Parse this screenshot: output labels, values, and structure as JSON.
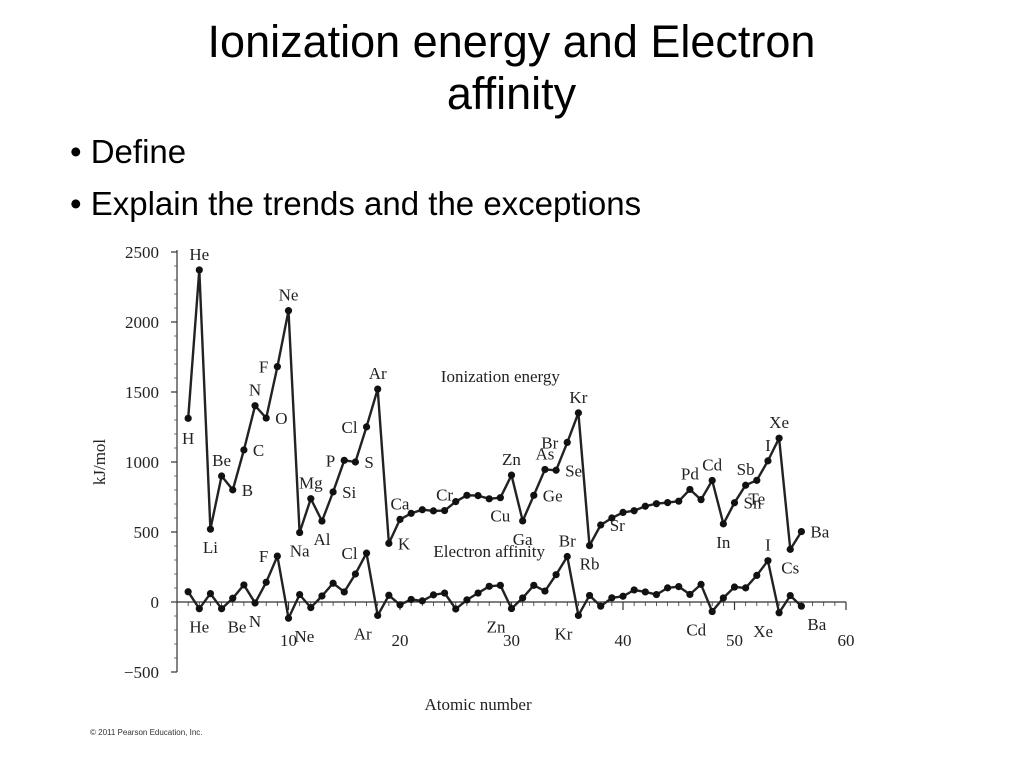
{
  "slide": {
    "title_line1": "Ionization energy and Electron",
    "title_line2": "affinity",
    "bullets": [
      "• Define",
      "• Explain the trends and the exceptions"
    ],
    "credit": "© 2011 Pearson Education, Inc."
  },
  "chart_data": {
    "type": "line",
    "xlabel": "Atomic number",
    "ylabel": "kJ/mol",
    "xlim": [
      0,
      60
    ],
    "ylim": [
      -500,
      2500
    ],
    "x_ticks": [
      10,
      20,
      30,
      40,
      50,
      60
    ],
    "y_ticks": [
      -500,
      0,
      500,
      1000,
      1500,
      2000,
      2500
    ],
    "series_annotations": [
      {
        "text": "Ionization energy",
        "x": 29,
        "y": 1570
      },
      {
        "text": "Electron affinity",
        "x": 28,
        "y": 320
      }
    ],
    "series": [
      {
        "key": "ionization",
        "x": [
          1,
          2,
          3,
          4,
          5,
          6,
          7,
          8,
          9,
          10,
          11,
          12,
          13,
          14,
          15,
          16,
          17,
          18,
          19,
          20,
          21,
          22,
          23,
          24,
          25,
          26,
          27,
          28,
          29,
          30,
          31,
          32,
          33,
          34,
          35,
          36,
          37,
          38,
          39,
          40,
          41,
          42,
          43,
          44,
          45,
          46,
          47,
          48,
          49,
          50,
          51,
          52,
          53,
          54,
          55,
          56
        ],
        "y": [
          1312,
          2372,
          520,
          900,
          801,
          1086,
          1402,
          1314,
          1681,
          2081,
          496,
          738,
          578,
          786,
          1012,
          1000,
          1251,
          1521,
          419,
          590,
          633,
          659,
          651,
          653,
          717,
          762,
          760,
          737,
          745,
          906,
          579,
          762,
          947,
          941,
          1140,
          1351,
          403,
          550,
          600,
          640,
          652,
          684,
          702,
          710,
          720,
          804,
          731,
          868,
          558,
          709,
          834,
          869,
          1008,
          1170,
          376,
          503
        ],
        "point_labels": [
          {
            "text": "H",
            "x": 1,
            "y": 1300,
            "pos": "below"
          },
          {
            "text": "He",
            "x": 2,
            "y": 2372,
            "pos": "above"
          },
          {
            "text": "Li",
            "x": 3,
            "y": 520,
            "pos": "below"
          },
          {
            "text": "Be",
            "x": 4,
            "y": 900,
            "pos": "above"
          },
          {
            "text": "B",
            "x": 5,
            "y": 801,
            "pos": "right"
          },
          {
            "text": "C",
            "x": 6,
            "y": 1086,
            "pos": "right"
          },
          {
            "text": "N",
            "x": 7,
            "y": 1402,
            "pos": "above"
          },
          {
            "text": "O",
            "x": 8,
            "y": 1314,
            "pos": "right"
          },
          {
            "text": "F",
            "x": 9,
            "y": 1681,
            "pos": "left"
          },
          {
            "text": "Ne",
            "x": 10,
            "y": 2081,
            "pos": "above"
          },
          {
            "text": "Na",
            "x": 11,
            "y": 496,
            "pos": "below"
          },
          {
            "text": "Mg",
            "x": 12,
            "y": 738,
            "pos": "above"
          },
          {
            "text": "Al",
            "x": 13,
            "y": 578,
            "pos": "below"
          },
          {
            "text": "Si",
            "x": 14,
            "y": 786,
            "pos": "right"
          },
          {
            "text": "P",
            "x": 15,
            "y": 1012,
            "pos": "left"
          },
          {
            "text": "S",
            "x": 16,
            "y": 1000,
            "pos": "right"
          },
          {
            "text": "Cl",
            "x": 17,
            "y": 1251,
            "pos": "left"
          },
          {
            "text": "Ar",
            "x": 18,
            "y": 1521,
            "pos": "above"
          },
          {
            "text": "K",
            "x": 19,
            "y": 419,
            "pos": "right"
          },
          {
            "text": "Ca",
            "x": 20,
            "y": 590,
            "pos": "above"
          },
          {
            "text": "Cr",
            "x": 24,
            "y": 653,
            "pos": "above"
          },
          {
            "text": "Cu",
            "x": 29,
            "y": 745,
            "pos": "below"
          },
          {
            "text": "Zn",
            "x": 30,
            "y": 906,
            "pos": "above"
          },
          {
            "text": "Ga",
            "x": 31,
            "y": 579,
            "pos": "below"
          },
          {
            "text": "Ge",
            "x": 32,
            "y": 762,
            "pos": "right"
          },
          {
            "text": "As",
            "x": 33,
            "y": 947,
            "pos": "above"
          },
          {
            "text": "Se",
            "x": 34,
            "y": 941,
            "pos": "right"
          },
          {
            "text": "Br",
            "x": 35,
            "y": 1140,
            "pos": "left"
          },
          {
            "text": "Kr",
            "x": 36,
            "y": 1351,
            "pos": "above"
          },
          {
            "text": "Rb",
            "x": 37,
            "y": 403,
            "pos": "below"
          },
          {
            "text": "Sr",
            "x": 38,
            "y": 550,
            "pos": "right"
          },
          {
            "text": "Pd",
            "x": 46,
            "y": 804,
            "pos": "above"
          },
          {
            "text": "Cd",
            "x": 48,
            "y": 868,
            "pos": "above"
          },
          {
            "text": "In",
            "x": 49,
            "y": 558,
            "pos": "below"
          },
          {
            "text": "Sn",
            "x": 50,
            "y": 709,
            "pos": "right"
          },
          {
            "text": "Sb",
            "x": 51,
            "y": 834,
            "pos": "above"
          },
          {
            "text": "Te",
            "x": 52,
            "y": 869,
            "pos": "below"
          },
          {
            "text": "I",
            "x": 53,
            "y": 1008,
            "pos": "above"
          },
          {
            "text": "Xe",
            "x": 54,
            "y": 1170,
            "pos": "above"
          },
          {
            "text": "Cs",
            "x": 55,
            "y": 376,
            "pos": "below"
          },
          {
            "text": "Ba",
            "x": 56,
            "y": 503,
            "pos": "right"
          }
        ]
      },
      {
        "key": "electron_affinity",
        "x": [
          1,
          2,
          3,
          4,
          5,
          6,
          7,
          8,
          9,
          10,
          11,
          12,
          13,
          14,
          15,
          16,
          17,
          18,
          19,
          20,
          21,
          22,
          23,
          24,
          25,
          26,
          27,
          28,
          29,
          30,
          31,
          32,
          33,
          34,
          35,
          36,
          37,
          38,
          39,
          40,
          41,
          42,
          43,
          44,
          45,
          46,
          47,
          48,
          49,
          50,
          51,
          52,
          53,
          54,
          55,
          56
        ],
        "y": [
          73,
          -48,
          60,
          -48,
          27,
          122,
          -7,
          141,
          328,
          -116,
          53,
          -40,
          43,
          134,
          72,
          200,
          349,
          -96,
          48,
          -20,
          18,
          8,
          51,
          64,
          -50,
          15,
          64,
          112,
          119,
          -47,
          29,
          119,
          78,
          195,
          325,
          -96,
          47,
          -30,
          30,
          41,
          86,
          72,
          53,
          101,
          110,
          54,
          126,
          -68,
          29,
          107,
          101,
          190,
          295,
          -77,
          46,
          -30
        ]
      }
    ],
    "ea_point_labels": [
      {
        "text": "He",
        "x": 2,
        "y": -48,
        "pos": "below"
      },
      {
        "text": "Be",
        "x": 4,
        "y": -48,
        "pos": "below-right"
      },
      {
        "text": "N",
        "x": 7,
        "y": -7,
        "pos": "below"
      },
      {
        "text": "F",
        "x": 9,
        "y": 328,
        "pos": "left"
      },
      {
        "text": "Ne",
        "x": 10,
        "y": -116,
        "pos": "below-right"
      },
      {
        "text": "Cl",
        "x": 17,
        "y": 349,
        "pos": "left"
      },
      {
        "text": "Ar",
        "x": 18,
        "y": -96,
        "pos": "below-left"
      },
      {
        "text": "Zn",
        "x": 30,
        "y": -47,
        "pos": "below-left"
      },
      {
        "text": "Br",
        "x": 35,
        "y": 325,
        "pos": "above"
      },
      {
        "text": "Kr",
        "x": 36,
        "y": -96,
        "pos": "below-left"
      },
      {
        "text": "Cd",
        "x": 48,
        "y": -68,
        "pos": "below-left"
      },
      {
        "text": "I",
        "x": 53,
        "y": 295,
        "pos": "above"
      },
      {
        "text": "Xe",
        "x": 54,
        "y": -77,
        "pos": "below-left"
      },
      {
        "text": "Ba",
        "x": 56,
        "y": -30,
        "pos": "below-right"
      }
    ]
  }
}
